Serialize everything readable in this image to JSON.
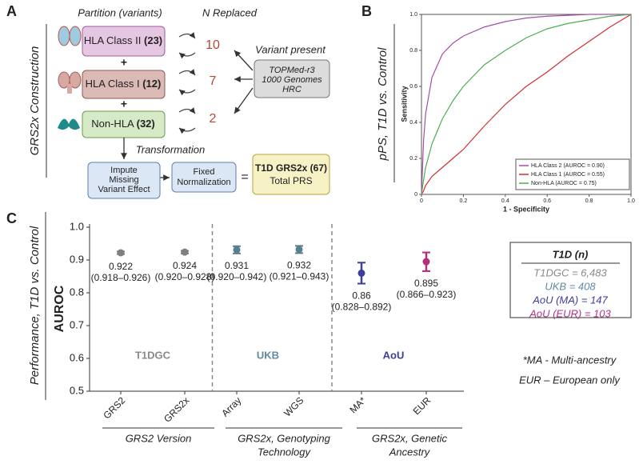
{
  "diagram": {
    "label": "A",
    "partition_header": "Partition (variants)",
    "replaced_header": "N Replaced",
    "side_title": "GRS2x Construction",
    "partitions": [
      {
        "name": "HLA Class II",
        "count": "(23)",
        "replaced": "10"
      },
      {
        "name": "HLA Class I",
        "count": "(12)",
        "replaced": "7"
      },
      {
        "name": "Non-HLA",
        "count": "(32)",
        "replaced": "2"
      }
    ],
    "plus": "+",
    "variant_present": "Variant present",
    "panels": [
      "TOPMed-r3",
      "1000 Genomes",
      "HRC"
    ],
    "transformation": "Transformation",
    "impute": [
      "Impute",
      "Missing",
      "Variant Effect"
    ],
    "fixed": [
      "Fixed",
      "Normalization"
    ],
    "equals": "=",
    "result": "T1D GRS2x (67)",
    "result_sub": "Total PRS"
  },
  "chart_data": [
    {
      "type": "line",
      "label": "B",
      "side_title": "pPS, T1D vs. Control",
      "y_label": "Sensitivity",
      "x_label": "1 - Specificity",
      "x": [
        0,
        0.01,
        0.02,
        0.05,
        0.1,
        0.15,
        0.2,
        0.3,
        0.4,
        0.5,
        0.6,
        0.7,
        0.8,
        0.9,
        1
      ],
      "series": [
        {
          "name": "HLA Class 2 (AUROC = 0.90)",
          "color": "#a64ca6",
          "values": [
            0,
            0.3,
            0.45,
            0.65,
            0.78,
            0.84,
            0.88,
            0.93,
            0.96,
            0.98,
            0.99,
            0.995,
            1,
            1,
            1
          ]
        },
        {
          "name": "HLA Class 1 (AUROC = 0.55)",
          "color": "#d03030",
          "values": [
            0,
            0.02,
            0.05,
            0.1,
            0.15,
            0.2,
            0.25,
            0.38,
            0.5,
            0.6,
            0.68,
            0.77,
            0.85,
            0.93,
            1
          ]
        },
        {
          "name": "Non-HLA (AUROC = 0.75)",
          "color": "#4caf50",
          "values": [
            0,
            0.08,
            0.15,
            0.28,
            0.42,
            0.52,
            0.6,
            0.72,
            0.8,
            0.87,
            0.92,
            0.95,
            0.97,
            0.99,
            1
          ]
        }
      ],
      "xlim": [
        0,
        1
      ],
      "ylim": [
        0,
        1
      ],
      "xticks": [
        0,
        0.2,
        0.4,
        0.6,
        0.8,
        {
          "value": 1,
          "label": "1.0"
        }
      ],
      "yticks": [
        0,
        0.2,
        0.4,
        0.6,
        0.8,
        {
          "value": 1,
          "label": "1.0"
        }
      ],
      "legend": "lower right"
    },
    {
      "type": "errorbar",
      "label": "C",
      "side_title": "Performance, T1D vs. Control",
      "y_label": "AUROC",
      "categories": [
        "GRS2",
        "GRS2x",
        "Array",
        "WGS",
        "MA*",
        "EUR"
      ],
      "values": [
        0.922,
        0.924,
        0.931,
        0.932,
        0.86,
        0.895
      ],
      "lower": [
        0.918,
        0.92,
        0.92,
        0.921,
        0.828,
        0.866
      ],
      "upper": [
        0.926,
        0.928,
        0.942,
        0.943,
        0.892,
        0.923
      ],
      "ci_labels": [
        "(0.918–0.926)",
        "(0.920–0.928)",
        "(0.920–0.942)",
        "(0.921–0.943)",
        "(0.828–0.892)",
        "(0.866–0.923)"
      ],
      "colors": [
        "#7f7f7f",
        "#7f7f7f",
        "#5a7d8f",
        "#5a7d8f",
        "#3e3e9b",
        "#b0307f"
      ],
      "ylim": [
        0.5,
        1
      ],
      "yticks": [
        0.5,
        0.6,
        0.7,
        0.8,
        0.9,
        {
          "value": 1,
          "label": "1.0"
        }
      ],
      "groups": [
        {
          "name": "T1DGC",
          "color": "#8a8a8a",
          "lines": [
            "GRS2 Version"
          ]
        },
        {
          "name": "UKB",
          "color": "#5f8aa0",
          "lines": [
            "GRS2x, Genotyping",
            "Technology"
          ]
        },
        {
          "name": "AoU",
          "color": "#3e3e9b",
          "lines": [
            "GRS2x, Genetic",
            "Ancestry"
          ]
        }
      ],
      "legend_title": "T1D (n)",
      "legend": [
        {
          "text": "T1DGC = 6,483",
          "color": "#8a8a8a"
        },
        {
          "text": "UKB = 408",
          "color": "#5f8aa0"
        },
        {
          "text": "AoU (MA) = 147",
          "color": "#3e3e9b"
        },
        {
          "text": "AoU (EUR) = 103",
          "color": "#b5338a"
        }
      ],
      "footnotes": [
        "*MA - Multi-ancestry",
        "EUR – European only"
      ]
    }
  ]
}
